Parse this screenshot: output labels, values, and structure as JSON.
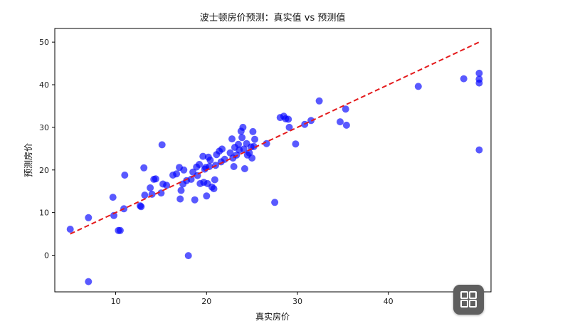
{
  "chart_data": {
    "type": "scatter",
    "title": "波士顿房价预测：真实值 vs 预测值",
    "xlabel": "真实房价",
    "ylabel": "预测房价",
    "xlim": [
      3.3,
      51.3
    ],
    "ylim": [
      -8.6,
      53.2
    ],
    "xticks": [
      10,
      20,
      30,
      40
    ],
    "yticks": [
      0,
      10,
      20,
      30,
      40,
      50
    ],
    "grid": false,
    "point_color": "#0000ff",
    "line_color": "#e41a1c",
    "reference_line": {
      "x": [
        5,
        50
      ],
      "y": [
        5,
        50
      ],
      "style": "dashed"
    },
    "points": [
      [
        5.0,
        6.1
      ],
      [
        7.0,
        8.8
      ],
      [
        7.0,
        -6.2
      ],
      [
        9.7,
        13.6
      ],
      [
        9.8,
        9.3
      ],
      [
        10.3,
        5.8
      ],
      [
        10.5,
        5.8
      ],
      [
        10.9,
        10.9
      ],
      [
        11.0,
        18.8
      ],
      [
        12.7,
        11.6
      ],
      [
        12.8,
        11.4
      ],
      [
        13.1,
        20.5
      ],
      [
        13.2,
        14.1
      ],
      [
        13.8,
        15.8
      ],
      [
        14.0,
        14.3
      ],
      [
        14.2,
        17.8
      ],
      [
        14.4,
        17.9
      ],
      [
        15.0,
        14.6
      ],
      [
        15.1,
        25.9
      ],
      [
        15.2,
        16.7
      ],
      [
        15.6,
        16.4
      ],
      [
        16.3,
        18.8
      ],
      [
        16.7,
        19.1
      ],
      [
        17.0,
        20.6
      ],
      [
        17.1,
        13.2
      ],
      [
        17.2,
        15.2
      ],
      [
        17.4,
        16.7
      ],
      [
        17.5,
        20.0
      ],
      [
        17.8,
        17.5
      ],
      [
        18.0,
        -0.1
      ],
      [
        18.3,
        17.8
      ],
      [
        18.5,
        19.5
      ],
      [
        18.7,
        13.0
      ],
      [
        18.9,
        20.7
      ],
      [
        19.0,
        18.7
      ],
      [
        19.2,
        21.3
      ],
      [
        19.3,
        16.8
      ],
      [
        19.6,
        23.2
      ],
      [
        19.7,
        17.1
      ],
      [
        19.8,
        20.2
      ],
      [
        19.9,
        20.6
      ],
      [
        20.0,
        13.9
      ],
      [
        20.1,
        16.8
      ],
      [
        20.2,
        23.0
      ],
      [
        20.3,
        20.8
      ],
      [
        20.4,
        22.3
      ],
      [
        20.6,
        16.0
      ],
      [
        20.8,
        15.6
      ],
      [
        20.9,
        17.7
      ],
      [
        21.0,
        21.1
      ],
      [
        21.1,
        23.6
      ],
      [
        21.4,
        24.4
      ],
      [
        21.6,
        21.9
      ],
      [
        21.7,
        24.9
      ],
      [
        22.0,
        22.5
      ],
      [
        22.6,
        24.0
      ],
      [
        22.8,
        27.3
      ],
      [
        22.9,
        22.8
      ],
      [
        23.0,
        20.8
      ],
      [
        23.1,
        25.3
      ],
      [
        23.3,
        23.5
      ],
      [
        23.5,
        26.0
      ],
      [
        23.6,
        24.7
      ],
      [
        23.8,
        29.1
      ],
      [
        23.9,
        27.6
      ],
      [
        24.0,
        30.0
      ],
      [
        24.1,
        24.9
      ],
      [
        24.2,
        20.3
      ],
      [
        24.4,
        26.2
      ],
      [
        24.5,
        23.5
      ],
      [
        24.7,
        24.0
      ],
      [
        24.9,
        25.4
      ],
      [
        25.0,
        22.8
      ],
      [
        25.1,
        29.0
      ],
      [
        25.2,
        25.5
      ],
      [
        25.3,
        27.2
      ],
      [
        26.6,
        26.2
      ],
      [
        27.5,
        12.4
      ],
      [
        28.1,
        32.3
      ],
      [
        28.5,
        32.6
      ],
      [
        28.7,
        32.0
      ],
      [
        29.0,
        31.9
      ],
      [
        29.1,
        30.0
      ],
      [
        29.8,
        26.1
      ],
      [
        30.8,
        30.7
      ],
      [
        31.5,
        31.6
      ],
      [
        32.4,
        36.2
      ],
      [
        34.7,
        31.3
      ],
      [
        35.3,
        34.3
      ],
      [
        35.4,
        30.5
      ],
      [
        43.3,
        39.6
      ],
      [
        48.3,
        41.4
      ],
      [
        50.0,
        42.7
      ],
      [
        50.0,
        41.3
      ],
      [
        50.0,
        40.4
      ],
      [
        50.0,
        24.7
      ]
    ]
  },
  "overlay": {
    "icon": "grid-icon"
  }
}
